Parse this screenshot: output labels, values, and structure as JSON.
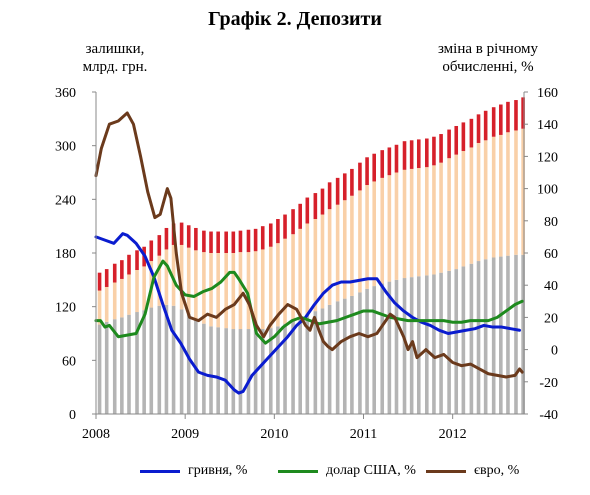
{
  "title": "Графік 2. Депозити",
  "ylabel_left": [
    "залишки,",
    "млрд. грн."
  ],
  "ylabel_right": [
    "зміна в річному",
    "обчисленні, %"
  ],
  "colors": {
    "bar_gray": "#b4b4b4",
    "bar_peach": "#f9d0a8",
    "bar_red": "#d6202a",
    "line_uah": "#0a1ccf",
    "line_usd": "#1e8a1e",
    "line_eur": "#6b3a1c"
  },
  "chart_data": {
    "type": "bar",
    "stacked": true,
    "grid": false,
    "legend_position": "bottom",
    "xlim": [
      2008.0,
      2012.8
    ],
    "x_tick_labels": [
      "2008",
      "2009",
      "2010",
      "2011",
      "2012"
    ],
    "y_left": {
      "ylim": [
        0,
        360
      ],
      "ticks": [
        0,
        60,
        120,
        180,
        240,
        300,
        360
      ]
    },
    "y_right": {
      "ylim": [
        -40,
        160
      ],
      "ticks": [
        -40,
        -20,
        0,
        20,
        40,
        60,
        80,
        100,
        120,
        140,
        160
      ]
    },
    "bar_series": {
      "x": [
        2008.04,
        2008.12,
        2008.21,
        2008.29,
        2008.37,
        2008.46,
        2008.54,
        2008.62,
        2008.71,
        2008.79,
        2008.87,
        2008.96,
        2009.04,
        2009.12,
        2009.21,
        2009.29,
        2009.37,
        2009.46,
        2009.54,
        2009.62,
        2009.71,
        2009.79,
        2009.87,
        2009.96,
        2010.04,
        2010.12,
        2010.21,
        2010.29,
        2010.37,
        2010.46,
        2010.54,
        2010.62,
        2010.71,
        2010.79,
        2010.87,
        2010.96,
        2011.04,
        2011.12,
        2011.21,
        2011.29,
        2011.37,
        2011.46,
        2011.54,
        2011.62,
        2011.71,
        2011.79,
        2011.87,
        2011.96,
        2012.04,
        2012.12,
        2012.21,
        2012.29,
        2012.37,
        2012.46,
        2012.54,
        2012.62,
        2012.71,
        2012.79
      ],
      "series": [
        {
          "values": [
            100,
            103,
            106,
            108,
            111,
            114,
            116,
            119,
            121,
            122,
            121,
            117,
            112,
            106,
            101,
            98,
            97,
            96,
            95,
            95,
            95,
            94,
            95,
            96,
            98,
            101,
            104,
            108,
            112,
            115,
            118,
            122,
            126,
            129,
            132,
            136,
            140,
            143,
            146,
            148,
            150,
            152,
            153,
            154,
            155,
            156,
            158,
            160,
            162,
            165,
            168,
            171,
            173,
            175,
            176,
            177,
            178,
            178
          ]
        },
        {
          "values": [
            38,
            39,
            41,
            43,
            45,
            47,
            49,
            52,
            56,
            62,
            68,
            72,
            74,
            77,
            80,
            82,
            83,
            84,
            85,
            86,
            86,
            88,
            89,
            91,
            93,
            95,
            97,
            99,
            101,
            103,
            105,
            107,
            108,
            110,
            112,
            114,
            116,
            117,
            118,
            119,
            120,
            121,
            121,
            121,
            121,
            122,
            123,
            126,
            128,
            129,
            130,
            132,
            133,
            135,
            136,
            138,
            139,
            141
          ]
        },
        {
          "values": [
            20,
            20,
            21,
            21,
            22,
            22,
            22,
            23,
            23,
            24,
            24,
            25,
            25,
            25,
            24,
            24,
            24,
            24,
            24,
            24,
            25,
            25,
            26,
            26,
            27,
            27,
            28,
            28,
            29,
            29,
            29,
            30,
            30,
            30,
            30,
            31,
            31,
            31,
            31,
            31,
            31,
            32,
            32,
            32,
            32,
            32,
            32,
            32,
            32,
            32,
            32,
            32,
            33,
            33,
            34,
            34,
            34,
            35
          ]
        }
      ]
    },
    "line_series": [
      {
        "name": "гривня, %",
        "axis": "right",
        "x": [
          2008.0,
          2008.1,
          2008.2,
          2008.3,
          2008.35,
          2008.45,
          2008.55,
          2008.65,
          2008.75,
          2008.85,
          2008.95,
          2009.05,
          2009.15,
          2009.25,
          2009.35,
          2009.45,
          2009.55,
          2009.6,
          2009.65,
          2009.75,
          2009.85,
          2009.95,
          2010.05,
          2010.15,
          2010.25,
          2010.35,
          2010.45,
          2010.55,
          2010.65,
          2010.75,
          2010.85,
          2010.95,
          2011.05,
          2011.15,
          2011.25,
          2011.35,
          2011.45,
          2011.55,
          2011.65,
          2011.75,
          2011.85,
          2011.95,
          2012.05,
          2012.15,
          2012.25,
          2012.35,
          2012.45,
          2012.55,
          2012.65,
          2012.75
        ],
        "values": [
          70,
          68,
          66,
          72,
          71,
          66,
          58,
          45,
          28,
          12,
          4,
          -6,
          -14,
          -16,
          -17,
          -19,
          -25,
          -27,
          -26,
          -16,
          -10,
          -4,
          2,
          8,
          15,
          20,
          28,
          35,
          40,
          42,
          42,
          43,
          44,
          44,
          36,
          29,
          24,
          20,
          17,
          15,
          12,
          10,
          11,
          12,
          13,
          15,
          14,
          14,
          13,
          12
        ]
      },
      {
        "name": "долар США, %",
        "axis": "right",
        "x": [
          2008.0,
          2008.05,
          2008.1,
          2008.15,
          2008.25,
          2008.35,
          2008.45,
          2008.55,
          2008.65,
          2008.75,
          2008.8,
          2008.9,
          2009.0,
          2009.1,
          2009.2,
          2009.3,
          2009.4,
          2009.5,
          2009.55,
          2009.6,
          2009.7,
          2009.8,
          2009.9,
          2010.0,
          2010.1,
          2010.2,
          2010.3,
          2010.4,
          2010.5,
          2010.6,
          2010.7,
          2010.8,
          2010.9,
          2011.0,
          2011.1,
          2011.2,
          2011.3,
          2011.4,
          2011.5,
          2011.6,
          2011.7,
          2011.8,
          2011.9,
          2012.0,
          2012.1,
          2012.2,
          2012.3,
          2012.4,
          2012.5,
          2012.6,
          2012.7,
          2012.78
        ],
        "values": [
          18,
          18,
          14,
          15,
          8,
          9,
          10,
          22,
          45,
          55,
          52,
          40,
          34,
          33,
          36,
          38,
          42,
          48,
          48,
          44,
          35,
          10,
          4,
          8,
          14,
          18,
          20,
          18,
          16,
          17,
          18,
          20,
          22,
          24,
          24,
          22,
          20,
          19,
          18,
          18,
          18,
          18,
          18,
          17,
          17,
          18,
          18,
          18,
          20,
          24,
          28,
          30
        ]
      },
      {
        "name": "євро, %",
        "axis": "right",
        "x": [
          2008.0,
          2008.06,
          2008.15,
          2008.25,
          2008.35,
          2008.42,
          2008.5,
          2008.58,
          2008.66,
          2008.72,
          2008.8,
          2008.84,
          2008.9,
          2008.96,
          2009.05,
          2009.15,
          2009.25,
          2009.35,
          2009.45,
          2009.55,
          2009.65,
          2009.72,
          2009.8,
          2009.88,
          2009.95,
          2010.05,
          2010.15,
          2010.25,
          2010.35,
          2010.4,
          2010.45,
          2010.5,
          2010.55,
          2010.6,
          2010.65,
          2010.75,
          2010.85,
          2010.95,
          2011.05,
          2011.15,
          2011.25,
          2011.3,
          2011.35,
          2011.45,
          2011.5,
          2011.55,
          2011.6,
          2011.7,
          2011.8,
          2011.9,
          2012.0,
          2012.1,
          2012.2,
          2012.3,
          2012.4,
          2012.5,
          2012.6,
          2012.7,
          2012.75,
          2012.78
        ],
        "values": [
          108,
          125,
          140,
          142,
          147,
          140,
          120,
          98,
          82,
          84,
          100,
          94,
          60,
          35,
          20,
          18,
          22,
          20,
          25,
          28,
          35,
          28,
          15,
          8,
          15,
          22,
          28,
          25,
          15,
          12,
          20,
          12,
          5,
          2,
          0,
          5,
          8,
          10,
          8,
          10,
          18,
          22,
          20,
          8,
          0,
          5,
          -5,
          0,
          -5,
          -3,
          -8,
          -10,
          -9,
          -12,
          -15,
          -16,
          -17,
          -16,
          -12,
          -14
        ]
      }
    ]
  },
  "legend": [
    {
      "label": "гривня, %",
      "color_key": "line_uah"
    },
    {
      "label": "долар США, %",
      "color_key": "line_usd"
    },
    {
      "label": "євро, %",
      "color_key": "line_eur"
    }
  ]
}
